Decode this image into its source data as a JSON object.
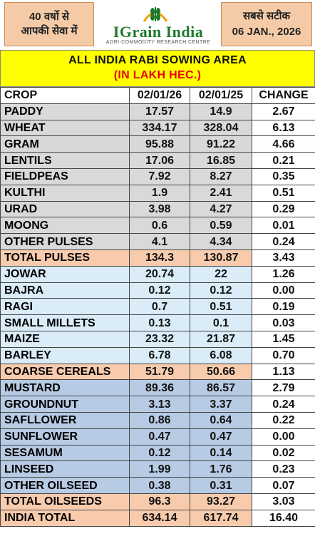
{
  "header": {
    "left_line1": "40 वर्षो से",
    "left_line2": "आपकी सेवा में",
    "brand": "IGrain India",
    "brand_sub": "AGRI-COMMODITY RESEARCH CENTRE",
    "right_line1": "सबसे सटीक",
    "right_line2": "06 JAN., 2026"
  },
  "title": {
    "line1": "ALL INDIA RABI SOWING AREA",
    "line2": "(IN LAKH HEC.)"
  },
  "columns": [
    "CROP",
    "02/01/26",
    "02/01/25",
    "CHANGE"
  ],
  "colors": {
    "positive": "#1aa53a",
    "negative": "#e8000b",
    "title_bg": "#ffff00",
    "total_bg": "#f8cbad"
  },
  "rows": [
    {
      "crop": "PADDY",
      "v26": "17.57",
      "v25": "14.9",
      "change": "2.67",
      "sign": "pos",
      "group": "pulse"
    },
    {
      "crop": "WHEAT",
      "v26": "334.17",
      "v25": "328.04",
      "change": "6.13",
      "sign": "pos",
      "group": "pulse"
    },
    {
      "crop": "GRAM",
      "v26": "95.88",
      "v25": "91.22",
      "change": "4.66",
      "sign": "pos",
      "group": "pulse"
    },
    {
      "crop": "LENTILS",
      "v26": "17.06",
      "v25": "16.85",
      "change": "0.21",
      "sign": "pos",
      "group": "pulse"
    },
    {
      "crop": "FIELDPEAS",
      "v26": "7.92",
      "v25": "8.27",
      "change": "0.35",
      "sign": "neg",
      "group": "pulse"
    },
    {
      "crop": "KULTHI",
      "v26": "1.9",
      "v25": "2.41",
      "change": "0.51",
      "sign": "neg",
      "group": "pulse"
    },
    {
      "crop": "URAD",
      "v26": "3.98",
      "v25": "4.27",
      "change": "0.29",
      "sign": "neg",
      "group": "pulse"
    },
    {
      "crop": "MOONG",
      "v26": "0.6",
      "v25": "0.59",
      "change": "0.01",
      "sign": "pos",
      "group": "pulse"
    },
    {
      "crop": "OTHER PULSES",
      "v26": "4.1",
      "v25": "4.34",
      "change": "0.24",
      "sign": "neg",
      "group": "pulse"
    },
    {
      "crop": "TOTAL PULSES",
      "v26": "134.3",
      "v25": "130.87",
      "change": "3.43",
      "sign": "pos",
      "group": "total"
    },
    {
      "crop": "JOWAR",
      "v26": "20.74",
      "v25": "22",
      "change": "1.26",
      "sign": "neg",
      "group": "cereal"
    },
    {
      "crop": "BAJRA",
      "v26": "0.12",
      "v25": "0.12",
      "change": "0.00",
      "sign": "zero",
      "group": "cereal"
    },
    {
      "crop": "RAGI",
      "v26": "0.7",
      "v25": "0.51",
      "change": "0.19",
      "sign": "pos",
      "group": "cereal"
    },
    {
      "crop": "SMALL MILLETS",
      "v26": "0.13",
      "v25": "0.1",
      "change": "0.03",
      "sign": "pos",
      "group": "cereal"
    },
    {
      "crop": "MAIZE",
      "v26": "23.32",
      "v25": "21.87",
      "change": "1.45",
      "sign": "pos",
      "group": "cereal"
    },
    {
      "crop": "BARLEY",
      "v26": "6.78",
      "v25": "6.08",
      "change": "0.70",
      "sign": "pos",
      "group": "cereal"
    },
    {
      "crop": "COARSE CEREALS",
      "v26": "51.79",
      "v25": "50.66",
      "change": "1.13",
      "sign": "pos",
      "group": "total"
    },
    {
      "crop": "MUSTARD",
      "v26": "89.36",
      "v25": "86.57",
      "change": "2.79",
      "sign": "pos",
      "group": "oil"
    },
    {
      "crop": "GROUNDNUT",
      "v26": "3.13",
      "v25": "3.37",
      "change": "0.24",
      "sign": "neg",
      "group": "oil"
    },
    {
      "crop": "SAFLLOWER",
      "v26": "0.86",
      "v25": "0.64",
      "change": "0.22",
      "sign": "pos",
      "group": "oil"
    },
    {
      "crop": "SUNFLOWER",
      "v26": "0.47",
      "v25": "0.47",
      "change": "0.00",
      "sign": "zero",
      "group": "oil"
    },
    {
      "crop": "SESAMUM",
      "v26": "0.12",
      "v25": "0.14",
      "change": "0.02",
      "sign": "neg",
      "group": "oil"
    },
    {
      "crop": "LINSEED",
      "v26": "1.99",
      "v25": "1.76",
      "change": "0.23",
      "sign": "pos",
      "group": "oil"
    },
    {
      "crop": "OTHER OILSEED",
      "v26": "0.38",
      "v25": "0.31",
      "change": "0.07",
      "sign": "pos",
      "group": "oil"
    },
    {
      "crop": "TOTAL OILSEEDS",
      "v26": "96.3",
      "v25": "93.27",
      "change": "3.03",
      "sign": "pos",
      "group": "total"
    },
    {
      "crop": "INDIA TOTAL",
      "v26": "634.14",
      "v25": "617.74",
      "change": "16.40",
      "sign": "pos",
      "group": "grand"
    }
  ]
}
